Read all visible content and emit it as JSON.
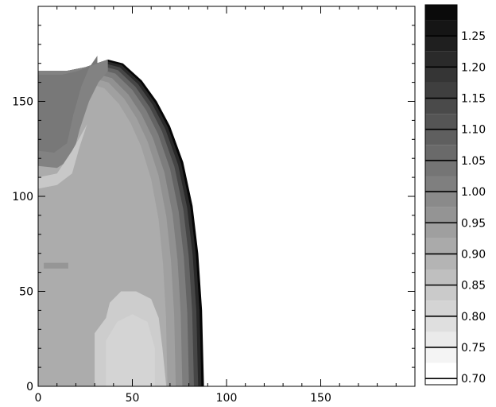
{
  "chart_data": {
    "type": "heatmap",
    "title": "",
    "xlabel": "",
    "ylabel": "",
    "xlim": [
      0,
      200
    ],
    "ylim": [
      0,
      200
    ],
    "x_ticks": [
      0,
      50,
      100,
      150
    ],
    "y_ticks": [
      0,
      50,
      100,
      150
    ],
    "colorscale": "greyscale (low = white, high = black)",
    "colorbar": {
      "range": [
        0.69,
        1.3
      ],
      "levels": [
        0.7,
        0.725,
        0.75,
        0.775,
        0.8,
        0.825,
        0.85,
        0.875,
        0.9,
        0.925,
        0.95,
        0.975,
        1.0,
        1.025,
        1.05,
        1.075,
        1.1,
        1.125,
        1.15,
        1.175,
        1.2,
        1.225,
        1.25,
        1.275
      ],
      "tick_labels": [
        "0.70",
        "0.75",
        "0.80",
        "0.85",
        "0.90",
        "0.95",
        "1.00",
        "1.05",
        "1.10",
        "1.15",
        "1.20",
        "1.25"
      ]
    },
    "region_outer_boundary": [
      [
        0,
        166
      ],
      [
        15,
        166
      ],
      [
        25,
        168
      ],
      [
        37,
        172
      ],
      [
        45,
        170
      ],
      [
        55,
        161
      ],
      [
        63,
        150
      ],
      [
        70,
        137
      ],
      [
        77,
        118
      ],
      [
        82,
        95
      ],
      [
        85,
        70
      ],
      [
        87,
        40
      ],
      [
        88,
        0
      ]
    ],
    "inner_notch_boundary": [
      [
        0,
        116
      ],
      [
        10,
        115
      ],
      [
        18,
        120
      ],
      [
        22,
        135
      ],
      [
        27,
        150
      ],
      [
        32,
        160
      ],
      [
        37,
        166
      ]
    ]
  }
}
